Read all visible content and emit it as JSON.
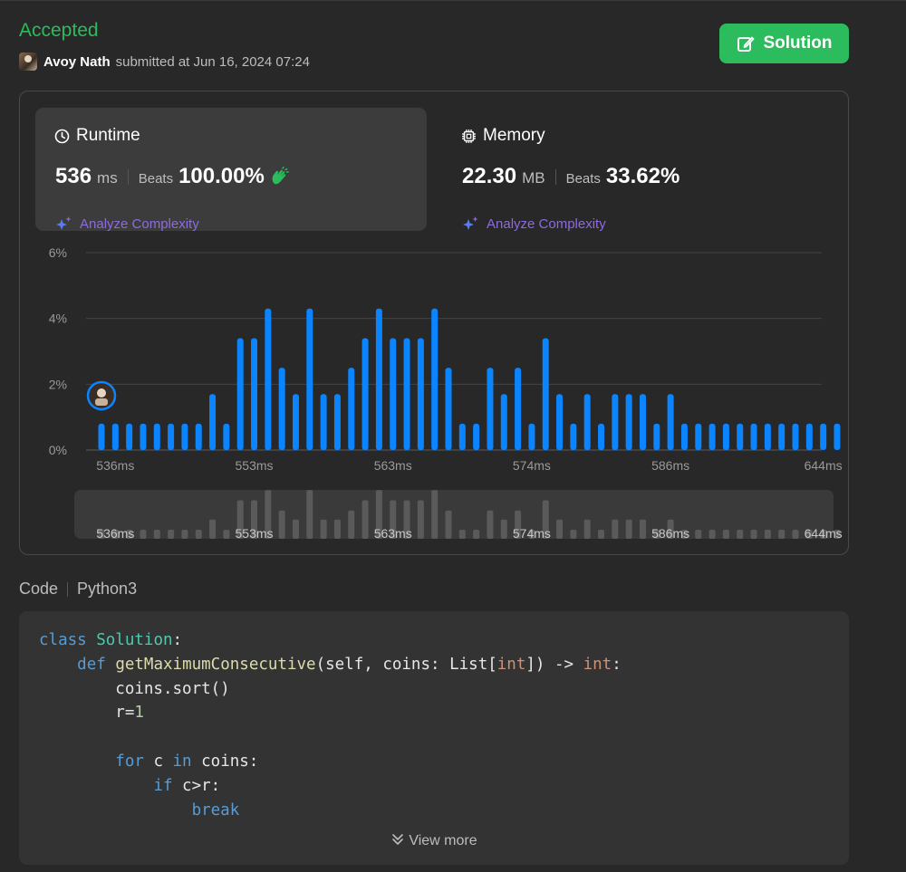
{
  "header": {
    "status": "Accepted",
    "username": "Avoy Nath",
    "submitted_text": "submitted at Jun 16, 2024 07:24",
    "solution_label": "Solution"
  },
  "runtime": {
    "title": "Runtime",
    "value": "536",
    "unit": "ms",
    "beats_label": "Beats",
    "beats_value": "100.00%",
    "analyze_label": "Analyze Complexity"
  },
  "memory": {
    "title": "Memory",
    "value": "22.30",
    "unit": "MB",
    "beats_label": "Beats",
    "beats_value": "33.62%",
    "analyze_label": "Analyze Complexity"
  },
  "chart_data": {
    "type": "bar",
    "title": "",
    "xlabel": "",
    "ylabel": "",
    "ylim": [
      0,
      6
    ],
    "y_ticks": [
      "0%",
      "2%",
      "4%",
      "6%"
    ],
    "x_tick_labels": [
      "536ms",
      "553ms",
      "563ms",
      "574ms",
      "586ms",
      "644ms"
    ],
    "x_tick_indices": [
      1,
      11,
      21,
      31,
      41,
      52
    ],
    "values": [
      0.8,
      0.8,
      0.8,
      0.8,
      0.8,
      0.8,
      0.8,
      0.8,
      1.7,
      0.8,
      3.4,
      3.4,
      4.3,
      2.5,
      1.7,
      4.3,
      1.7,
      1.7,
      2.5,
      3.4,
      4.3,
      3.4,
      3.4,
      3.4,
      4.3,
      2.5,
      0.8,
      0.8,
      2.5,
      1.7,
      2.5,
      0.8,
      3.4,
      1.7,
      0.8,
      1.7,
      0.8,
      1.7,
      1.7,
      1.7,
      0.8,
      1.7,
      0.8,
      0.8,
      0.8,
      0.8,
      0.8,
      0.8,
      0.8,
      0.8,
      0.8,
      0.8,
      0.8,
      0.8
    ],
    "highlight_index": 0,
    "bar_color": "#0a84ff",
    "minimap_color": "#5a5a5a"
  },
  "code": {
    "label": "Code",
    "language": "Python3",
    "view_more": "View more"
  },
  "colors": {
    "accent_green": "#2cbb5d",
    "analyze_purple": "#8d6be0"
  }
}
